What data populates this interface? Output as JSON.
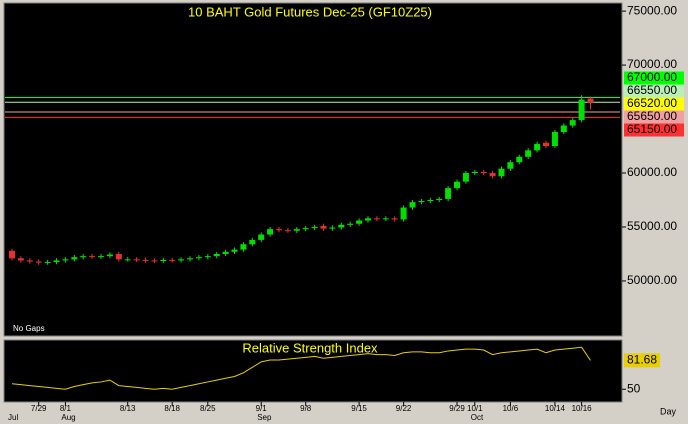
{
  "chart_data": [
    {
      "type": "candlestick",
      "title": "10 BAHT Gold Futures Dec-25 (GF10Z25)",
      "note": "No Gaps",
      "x_unit": "Day",
      "categories": [
        null,
        null,
        null,
        "7/29",
        null,
        null,
        "8/1",
        null,
        null,
        null,
        null,
        null,
        null,
        "8/13",
        null,
        null,
        null,
        null,
        "8/18",
        null,
        null,
        null,
        "8/25",
        null,
        null,
        null,
        null,
        null,
        "9/1",
        null,
        null,
        null,
        null,
        "9/8",
        null,
        null,
        null,
        null,
        null,
        "9/15",
        null,
        null,
        null,
        null,
        "9/22",
        null,
        null,
        null,
        null,
        null,
        "9/29",
        null,
        "10/1",
        null,
        null,
        null,
        "10/6",
        null,
        null,
        null,
        null,
        "10/14",
        null,
        null,
        "10/16",
        null
      ],
      "month_labels": [
        "Jul",
        null,
        null,
        null,
        null,
        null,
        "Aug",
        null,
        null,
        null,
        null,
        null,
        null,
        null,
        null,
        null,
        null,
        null,
        null,
        null,
        null,
        null,
        null,
        null,
        null,
        null,
        null,
        null,
        "Sep",
        null,
        null,
        null,
        null,
        null,
        null,
        null,
        null,
        null,
        null,
        null,
        null,
        null,
        null,
        null,
        null,
        null,
        null,
        null,
        null,
        null,
        null,
        null,
        "Oct",
        null,
        null,
        null,
        null,
        null,
        null,
        null,
        null,
        null,
        null,
        null,
        null,
        null
      ],
      "open": [
        52800,
        52100,
        51900,
        51800,
        51700,
        51750,
        51900,
        52000,
        52200,
        52300,
        52250,
        52300,
        52500,
        52000,
        52000,
        51950,
        51900,
        51850,
        51950,
        51900,
        52000,
        52100,
        52200,
        52300,
        52500,
        52700,
        52900,
        53400,
        53800,
        54300,
        54800,
        54700,
        54650,
        54800,
        54900,
        55100,
        54850,
        54950,
        55200,
        55300,
        55600,
        55800,
        55750,
        55800,
        55700,
        56800,
        57300,
        57400,
        57500,
        57600,
        58600,
        59200,
        60000,
        60100,
        60000,
        59700,
        60400,
        61000,
        61500,
        62100,
        62800,
        62500,
        63800,
        64400,
        64900,
        66900
      ],
      "high": [
        53000,
        52300,
        52100,
        52000,
        51950,
        52100,
        52200,
        52400,
        52500,
        52500,
        52500,
        52650,
        52700,
        52200,
        52200,
        52150,
        52100,
        52150,
        52150,
        52200,
        52300,
        52400,
        52500,
        52700,
        52900,
        53100,
        53600,
        54000,
        54500,
        55000,
        55000,
        54900,
        55000,
        55100,
        55200,
        55300,
        55150,
        55400,
        55500,
        55800,
        56000,
        56000,
        56000,
        56000,
        57000,
        57500,
        57600,
        57700,
        57800,
        58800,
        59400,
        60200,
        60300,
        60300,
        60200,
        60600,
        61200,
        61700,
        62300,
        62900,
        63000,
        64000,
        64600,
        65100,
        67200,
        67100
      ],
      "low": [
        51900,
        51700,
        51600,
        51500,
        51500,
        51550,
        51700,
        51800,
        52000,
        52050,
        52050,
        52100,
        51800,
        51800,
        51750,
        51700,
        51650,
        51650,
        51700,
        51700,
        51800,
        51900,
        52000,
        52100,
        52300,
        52500,
        52700,
        53200,
        53600,
        54100,
        54500,
        54450,
        54450,
        54600,
        54700,
        54650,
        54650,
        54750,
        55000,
        55100,
        55400,
        55550,
        55550,
        55500,
        55500,
        56600,
        57100,
        57200,
        57300,
        57400,
        58400,
        59000,
        59800,
        59800,
        59500,
        59500,
        60200,
        60800,
        61300,
        61900,
        62300,
        62300,
        63600,
        64200,
        64700,
        65900
      ],
      "close": [
        52100,
        51900,
        51800,
        51700,
        51750,
        51900,
        52000,
        52200,
        52300,
        52250,
        52300,
        52450,
        52000,
        52000,
        51950,
        51900,
        51850,
        51950,
        51900,
        52000,
        52100,
        52200,
        52300,
        52500,
        52700,
        52900,
        53400,
        53800,
        54300,
        54800,
        54700,
        54650,
        54800,
        54900,
        55000,
        54850,
        54950,
        55200,
        55300,
        55600,
        55800,
        55750,
        55800,
        55700,
        56800,
        57300,
        57400,
        57500,
        57600,
        58600,
        59200,
        60000,
        60100,
        60000,
        59700,
        60400,
        61000,
        61500,
        62100,
        62700,
        62500,
        63800,
        64400,
        64900,
        66800,
        66520
      ],
      "up_color": "#00e000",
      "down_color": "#e83030",
      "ylim": [
        44900,
        75750
      ],
      "yticks": [
        {
          "value": 75000,
          "label": "75000.00"
        },
        {
          "value": 70000,
          "label": "70000.00"
        },
        {
          "value": 60000,
          "label": "60000.00"
        },
        {
          "value": 55000,
          "label": "55000.00"
        },
        {
          "value": 50000,
          "label": "50000.00"
        }
      ],
      "levels": [
        {
          "value": 67000,
          "label": "67000.00",
          "color": "#00ff00",
          "line": true
        },
        {
          "value": 66550,
          "label": "66550.00",
          "color": "#b8f0b8",
          "line": true
        },
        {
          "value": 66520,
          "label": "66520.00",
          "color": "#ffff00",
          "line": false
        },
        {
          "value": 65650,
          "label": "65650.00",
          "color": "#f0a0a0",
          "line": true
        },
        {
          "value": 65150,
          "label": "65150.00",
          "color": "#ff3030",
          "line": true
        }
      ]
    },
    {
      "type": "line",
      "title": "Relative Strength Index",
      "color": "#e8d000",
      "values": [
        56,
        55,
        54,
        53,
        52,
        51,
        50,
        53,
        55,
        57,
        58,
        60,
        54,
        53,
        52,
        51,
        50,
        51,
        50,
        52,
        54,
        56,
        58,
        60,
        62,
        64,
        68,
        74,
        80,
        82,
        82,
        83,
        84,
        85,
        86,
        84,
        85,
        86,
        87,
        88,
        89,
        88,
        88,
        87,
        90,
        91,
        91,
        90,
        90,
        92,
        93,
        94,
        94,
        93,
        88,
        90,
        91,
        92,
        93,
        94,
        90,
        93,
        94,
        95,
        96,
        81.68
      ],
      "ylim": [
        36,
        104
      ],
      "yticks": [
        50
      ]
    }
  ]
}
